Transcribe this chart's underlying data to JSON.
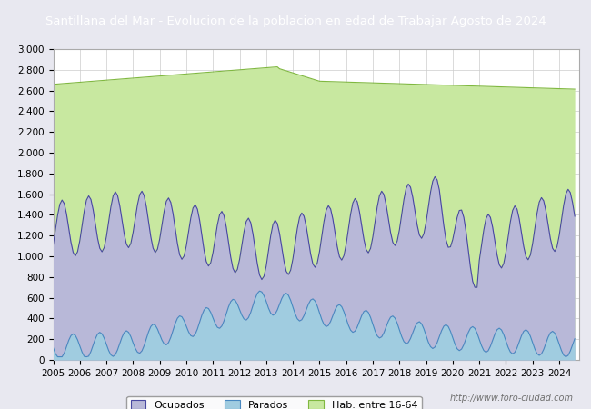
{
  "title": "Santillana del Mar - Evolucion de la poblacion en edad de Trabajar Agosto de 2024",
  "title_bg": "#2855b8",
  "title_color": "white",
  "ylim": [
    0,
    3000
  ],
  "yticks": [
    0,
    200,
    400,
    600,
    800,
    1000,
    1200,
    1400,
    1600,
    1800,
    2000,
    2200,
    2400,
    2600,
    2800,
    3000
  ],
  "ytick_labels": [
    "0",
    "200",
    "400",
    "600",
    "800",
    "1.000",
    "1.200",
    "1.400",
    "1.600",
    "1.800",
    "2.000",
    "2.200",
    "2.400",
    "2.600",
    "2.800",
    "3.000"
  ],
  "legend_labels": [
    "Ocupados",
    "Parados",
    "Hab. entre 16-64"
  ],
  "hab_color": "#c8e8a0",
  "hab_line_color": "#80b840",
  "ocup_color": "#b8b8d8",
  "ocup_line_color": "#4848a0",
  "parad_color": "#a0cce0",
  "parad_line_color": "#4888c0",
  "background_color": "#e8e8f0",
  "plot_bg": "#ffffff",
  "grid_color": "#cccccc",
  "watermark": "http://www.foro-ciudad.com",
  "start_year": 2005,
  "n_months": 236,
  "xlim_start": 2005,
  "xlim_end": 2024.75,
  "xtick_years": [
    2005,
    2006,
    2007,
    2008,
    2009,
    2010,
    2011,
    2012,
    2013,
    2014,
    2015,
    2016,
    2017,
    2018,
    2019,
    2020,
    2021,
    2022,
    2023,
    2024
  ]
}
